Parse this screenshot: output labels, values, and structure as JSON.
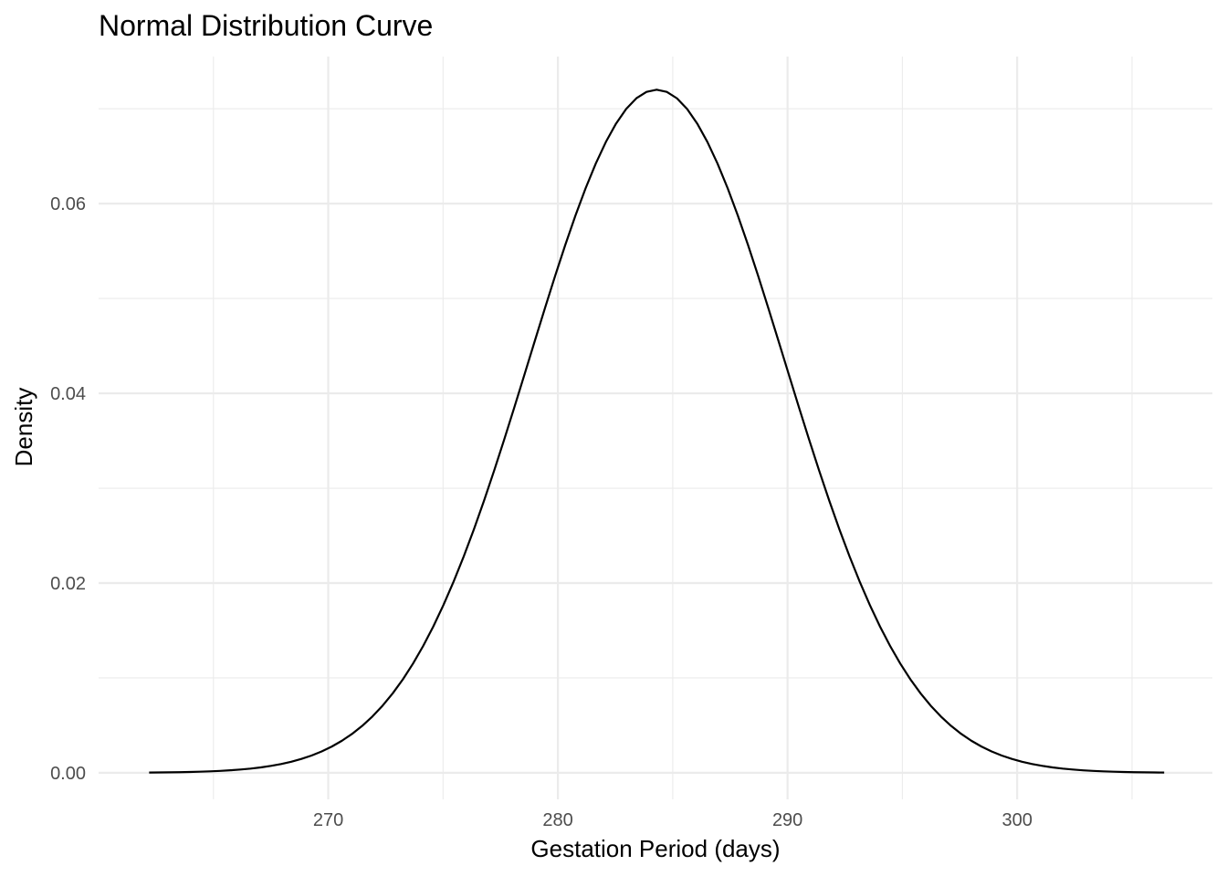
{
  "chart_data": {
    "type": "line",
    "title": "Normal Distribution Curve",
    "xlabel": "Gestation Period (days)",
    "ylabel": "Density",
    "x_ticks": [
      270,
      280,
      290,
      300
    ],
    "x_tick_labels": [
      "270",
      "280",
      "290",
      "300"
    ],
    "y_ticks": [
      0,
      0.02,
      0.04,
      0.06
    ],
    "y_tick_labels": [
      "0.00",
      "0.02",
      "0.04",
      "0.06"
    ],
    "xlim": [
      260.0,
      308.5
    ],
    "ylim": [
      -0.0028,
      0.0755
    ],
    "grid": true,
    "legend": "none",
    "series": [
      {
        "distribution": "normal",
        "mean": 284.3,
        "sd": 5.54,
        "x_range": [
          262.2,
          306.4
        ],
        "points": [
          {
            "x": 262.2,
            "y": 0.0
          },
          {
            "x": 266.0,
            "y": 0.0003
          },
          {
            "x": 268.0,
            "y": 0.001
          },
          {
            "x": 270.0,
            "y": 0.0026
          },
          {
            "x": 272.0,
            "y": 0.0054
          },
          {
            "x": 274.0,
            "y": 0.0128
          },
          {
            "x": 276.0,
            "y": 0.0235
          },
          {
            "x": 278.0,
            "y": 0.0383
          },
          {
            "x": 280.0,
            "y": 0.053
          },
          {
            "x": 282.0,
            "y": 0.0658
          },
          {
            "x": 284.3,
            "y": 0.072
          },
          {
            "x": 286.0,
            "y": 0.0688
          },
          {
            "x": 288.0,
            "y": 0.0577
          },
          {
            "x": 290.0,
            "y": 0.0424
          },
          {
            "x": 292.0,
            "y": 0.0272
          },
          {
            "x": 294.0,
            "y": 0.0155
          },
          {
            "x": 296.0,
            "y": 0.0078
          },
          {
            "x": 298.0,
            "y": 0.0034
          },
          {
            "x": 300.0,
            "y": 0.0013
          },
          {
            "x": 303.0,
            "y": 0.0002
          },
          {
            "x": 306.4,
            "y": 0.0
          }
        ]
      }
    ],
    "colors": {
      "line": "#000000",
      "grid": "#ebebeb",
      "tick_text": "#4d4d4d",
      "background": "#ffffff"
    }
  }
}
